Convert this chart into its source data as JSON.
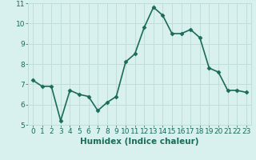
{
  "x": [
    0,
    1,
    2,
    3,
    4,
    5,
    6,
    7,
    8,
    9,
    10,
    11,
    12,
    13,
    14,
    15,
    16,
    17,
    18,
    19,
    20,
    21,
    22,
    23
  ],
  "y": [
    7.2,
    6.9,
    6.9,
    5.2,
    6.7,
    6.5,
    6.4,
    5.7,
    6.1,
    6.4,
    8.1,
    8.5,
    9.8,
    10.8,
    10.4,
    9.5,
    9.5,
    9.7,
    9.3,
    7.8,
    7.6,
    6.7,
    6.7,
    6.6
  ],
  "line_color": "#1a6b5a",
  "marker": "D",
  "marker_size": 2.5,
  "bg_color": "#d8f0ee",
  "grid_color": "#c0ddd9",
  "xlabel": "Humidex (Indice chaleur)",
  "ylim": [
    5,
    11
  ],
  "xlim": [
    -0.5,
    23.5
  ],
  "yticks": [
    5,
    6,
    7,
    8,
    9,
    10,
    11
  ],
  "xticks": [
    0,
    1,
    2,
    3,
    4,
    5,
    6,
    7,
    8,
    9,
    10,
    11,
    12,
    13,
    14,
    15,
    16,
    17,
    18,
    19,
    20,
    21,
    22,
    23
  ],
  "xtick_labels": [
    "0",
    "1",
    "2",
    "3",
    "4",
    "5",
    "6",
    "7",
    "8",
    "9",
    "10",
    "11",
    "12",
    "13",
    "14",
    "15",
    "16",
    "17",
    "18",
    "19",
    "20",
    "21",
    "22",
    "23"
  ],
  "xlabel_fontsize": 7.5,
  "tick_fontsize": 6.5,
  "line_width": 1.2
}
